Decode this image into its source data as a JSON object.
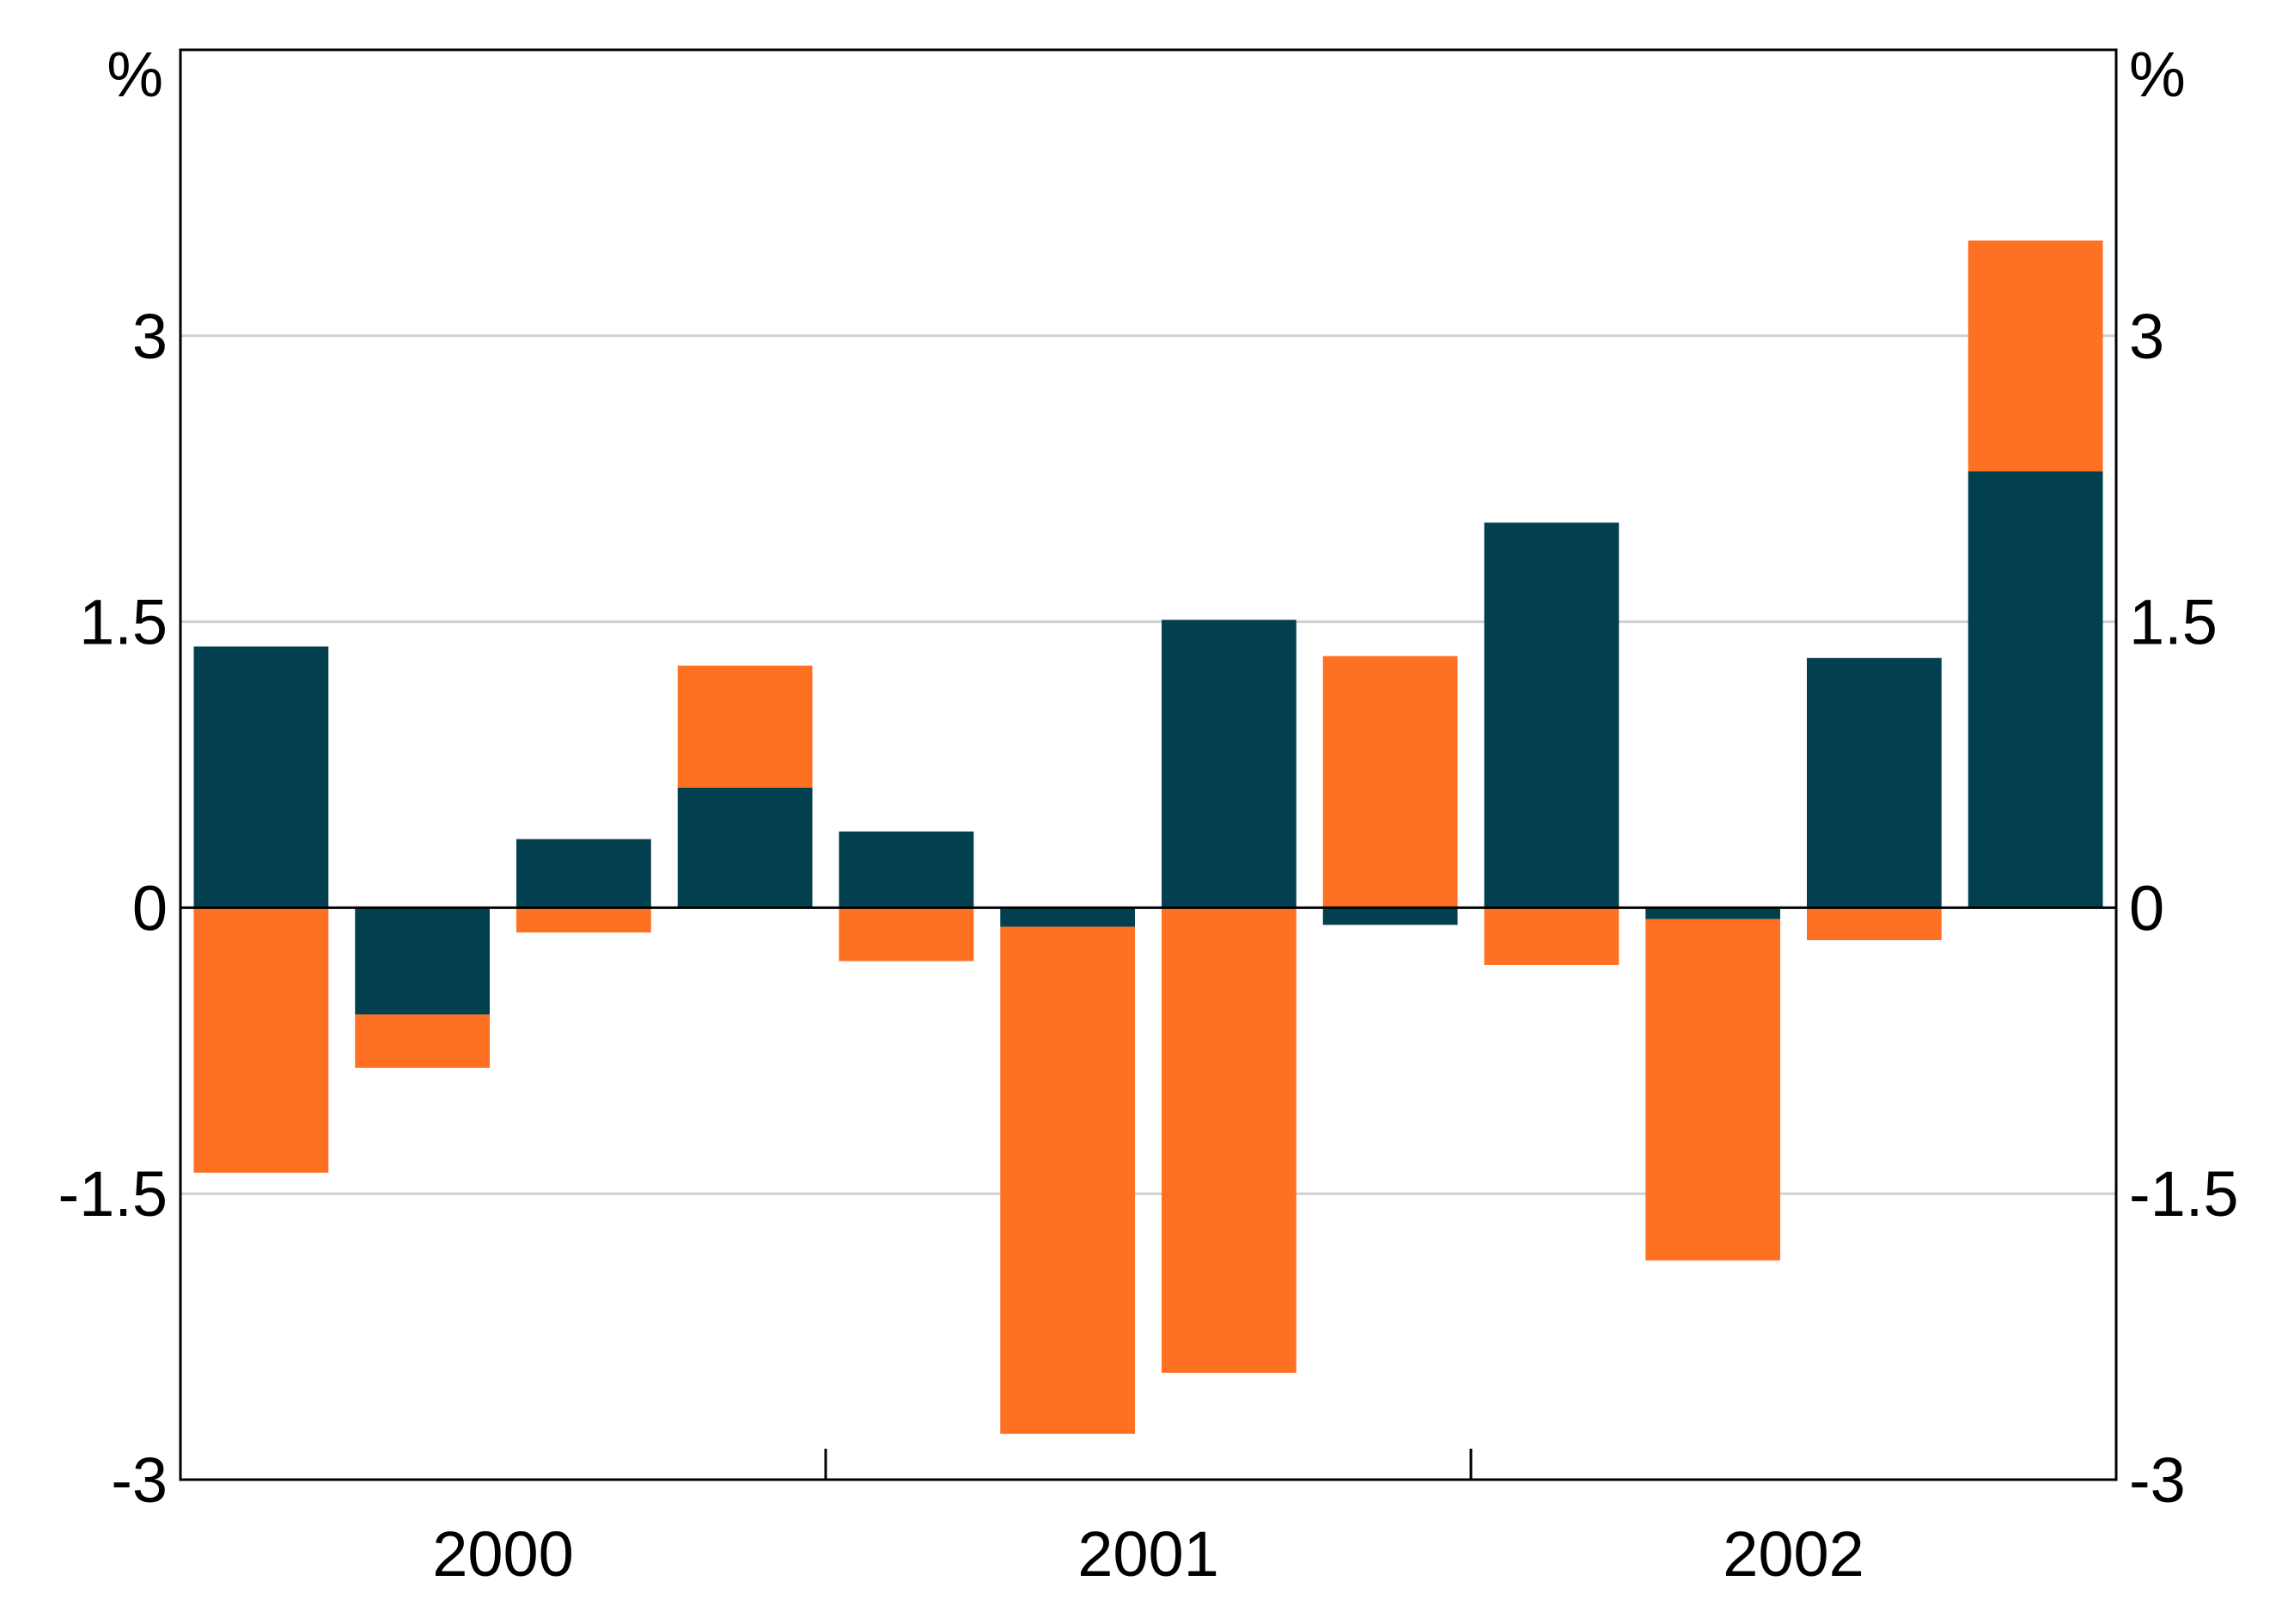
{
  "chart_data": {
    "type": "bar",
    "stacked": true,
    "title": "",
    "xlabel": "",
    "ylabel": "",
    "units": {
      "left": "%",
      "right": "%"
    },
    "ylim": [
      -3,
      4.5
    ],
    "yticks": [
      -3,
      -1.5,
      0,
      1.5,
      3
    ],
    "ytick_labels": [
      "-3",
      "-1.5",
      "0",
      "1.5",
      "3"
    ],
    "categories": [
      "2000 Q1",
      "2000 Q2",
      "2000 Q3",
      "2000 Q4",
      "2001 Q1",
      "2001 Q2",
      "2001 Q3",
      "2001 Q4",
      "2002 Q1",
      "2002 Q2",
      "2002 Q3",
      "2002 Q4"
    ],
    "year_labels": [
      "2000",
      "2001",
      "2002"
    ],
    "grid": true,
    "series": [
      {
        "color": "#03404f",
        "values": [
          1.37,
          -0.56,
          0.36,
          0.63,
          0.4,
          -0.1,
          1.51,
          -0.09,
          2.02,
          -0.06,
          1.31,
          2.29
        ]
      },
      {
        "color": "#fe7022",
        "values": [
          -1.39,
          -0.28,
          -0.13,
          0.64,
          -0.28,
          -2.66,
          -2.44,
          1.32,
          -0.3,
          -1.79,
          -0.17,
          1.21
        ]
      }
    ]
  }
}
